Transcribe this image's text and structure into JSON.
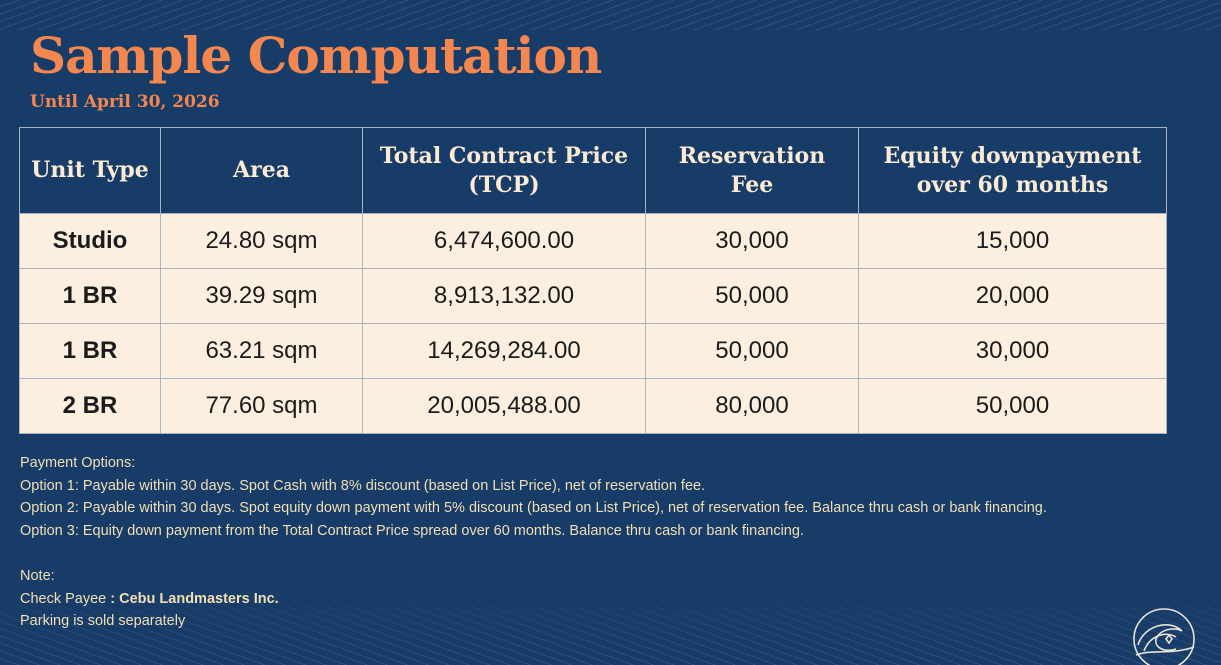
{
  "title": "Sample Computation",
  "subtitle": "Until April 30, 2026",
  "table": {
    "headers": [
      "Unit Type",
      "Area",
      "Total Contract Price (TCP)",
      "Reservation Fee",
      "Equity downpayment over 60 months"
    ],
    "header_lines": [
      [
        "Unit Type"
      ],
      [
        "Area"
      ],
      [
        "Total Contract Price",
        "(TCP)"
      ],
      [
        "Reservation",
        "Fee"
      ],
      [
        "Equity downpayment",
        "over 60 months"
      ]
    ],
    "rows": [
      [
        "Studio",
        "24.80 sqm",
        "6,474,600.00",
        "30,000",
        "15,000"
      ],
      [
        "1 BR",
        "39.29 sqm",
        "8,913,132.00",
        "50,000",
        "20,000"
      ],
      [
        "1 BR",
        "63.21 sqm",
        "14,269,284.00",
        "50,000",
        "30,000"
      ],
      [
        "2 BR",
        "77.60 sqm",
        "20,005,488.00",
        "80,000",
        "50,000"
      ]
    ]
  },
  "notes": {
    "payment_heading": "Payment Options:",
    "option1": "Option 1: Payable within 30 days. Spot Cash with 8% discount (based on List Price), net of reservation fee.",
    "option2": "Option 2: Payable within 30 days. Spot equity down payment with 5% discount (based on List Price), net of reservation fee. Balance thru cash or bank financing.",
    "option3": "Option 3: Equity down payment  from the Total Contract Price spread over 60 months. Balance thru cash or bank financing.",
    "note_heading": "Note:",
    "payee_label": "Check Payee ",
    "payee_value": ": Cebu Landmasters Inc.",
    "parking": "Parking is sold separately"
  },
  "colors": {
    "accent": "#f4874f",
    "background": "#163c67",
    "cell": "#fcefdf",
    "note_text": "#f3dfb6"
  }
}
